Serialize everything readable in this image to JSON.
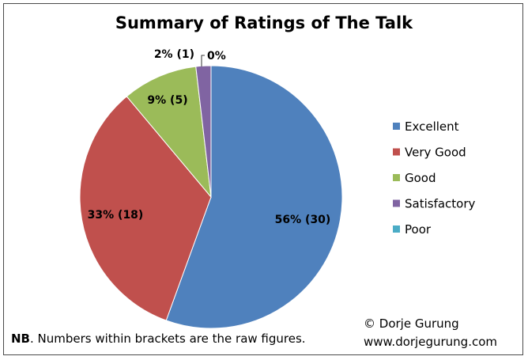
{
  "chart_data": {
    "type": "pie",
    "title": "Summary of Ratings of The Talk",
    "categories": [
      "Excellent",
      "Very Good",
      "Good",
      "Satisfactory",
      "Poor"
    ],
    "values": [
      30,
      18,
      5,
      1,
      0
    ],
    "colors": [
      "#4f81bd",
      "#c0504d",
      "#9bbb59",
      "#8064a2",
      "#4bacc6"
    ],
    "data_labels": [
      "56% (30)",
      "33% (18)",
      "9% (5)",
      "2% (1)",
      "0%"
    ],
    "legend_position": "right",
    "start_angle": "top, clockwise"
  },
  "footer": {
    "note_bold": "NB",
    "note_text": ". Numbers within brackets are the raw figures.",
    "copyright": "© Dorje Gurung",
    "website": "www.dorjegurung.com"
  }
}
